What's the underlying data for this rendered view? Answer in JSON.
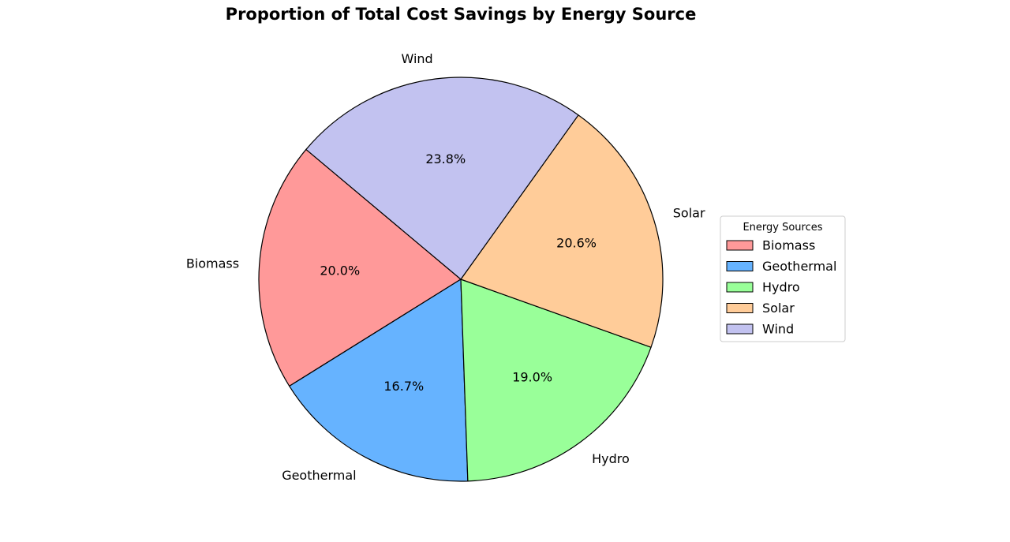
{
  "chart_data": {
    "type": "pie",
    "title": "Proportion of Total Cost Savings by Energy Source",
    "categories": [
      "Biomass",
      "Geothermal",
      "Hydro",
      "Solar",
      "Wind"
    ],
    "values": [
      20.0,
      16.7,
      19.0,
      20.6,
      23.8
    ],
    "value_labels": [
      "20.0%",
      "16.7%",
      "19.0%",
      "20.6%",
      "23.8%"
    ],
    "colors": [
      "#ff9999",
      "#66b3ff",
      "#99ff99",
      "#ffcc99",
      "#c2c2f0"
    ],
    "start_angle_deg": 140,
    "direction": "counterclockwise",
    "legend": {
      "title": "Energy Sources",
      "placement": "center-right",
      "entries": [
        "Biomass",
        "Geothermal",
        "Hydro",
        "Solar",
        "Wind"
      ]
    }
  }
}
